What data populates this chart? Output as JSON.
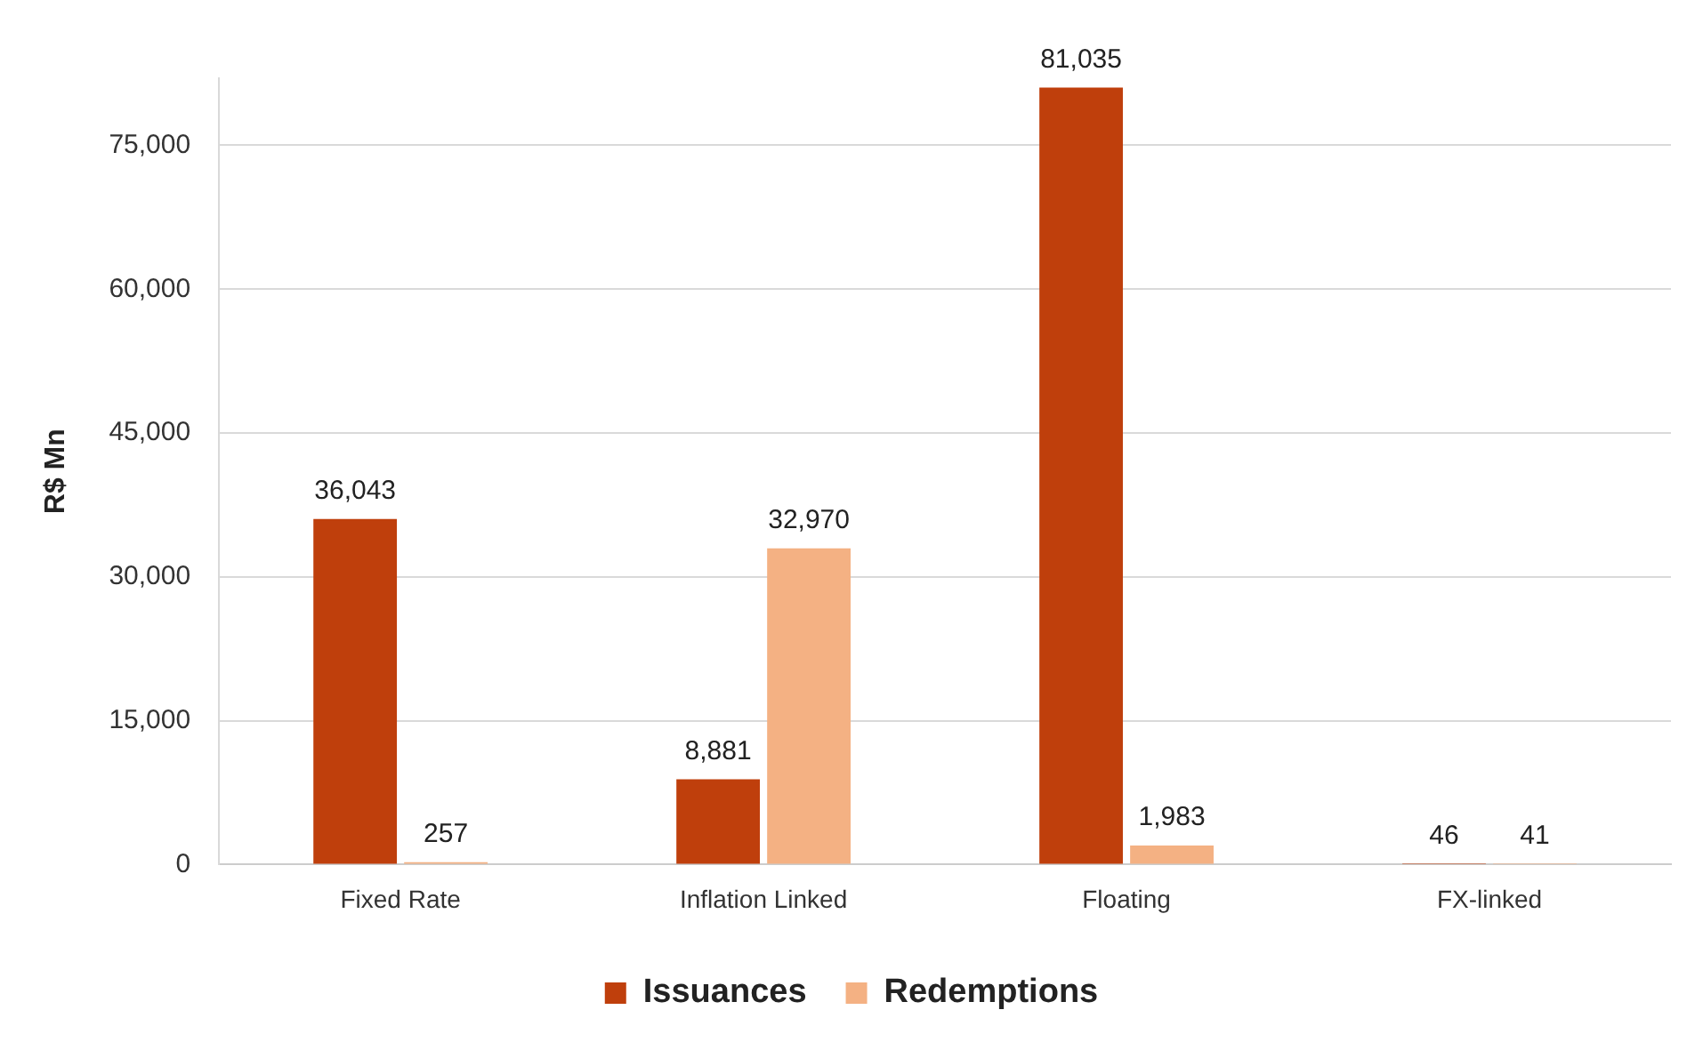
{
  "chart_data": {
    "type": "bar",
    "ylabel": "R$ Mn",
    "categories": [
      "Fixed Rate",
      "Inflation Linked",
      "Floating",
      "FX-linked"
    ],
    "series": [
      {
        "name": "Issuances",
        "color": "#bf3f0c",
        "values": [
          36043,
          8881,
          81035,
          46
        ],
        "value_labels": [
          "36,043",
          "8,881",
          "81,035",
          "46"
        ]
      },
      {
        "name": "Redemptions",
        "color": "#f4b183",
        "values": [
          257,
          32970,
          1983,
          41
        ],
        "value_labels": [
          "257",
          "32,970",
          "1,983",
          "41"
        ]
      }
    ],
    "ylim": [
      0,
      82000
    ],
    "yticks": [
      {
        "value": 0,
        "label": "0"
      },
      {
        "value": 15000,
        "label": "15,000"
      },
      {
        "value": 30000,
        "label": "30,000"
      },
      {
        "value": 45000,
        "label": "45,000"
      },
      {
        "value": 60000,
        "label": "60,000"
      },
      {
        "value": 75000,
        "label": "75,000"
      }
    ],
    "grid": "y",
    "legend": "bottom"
  }
}
